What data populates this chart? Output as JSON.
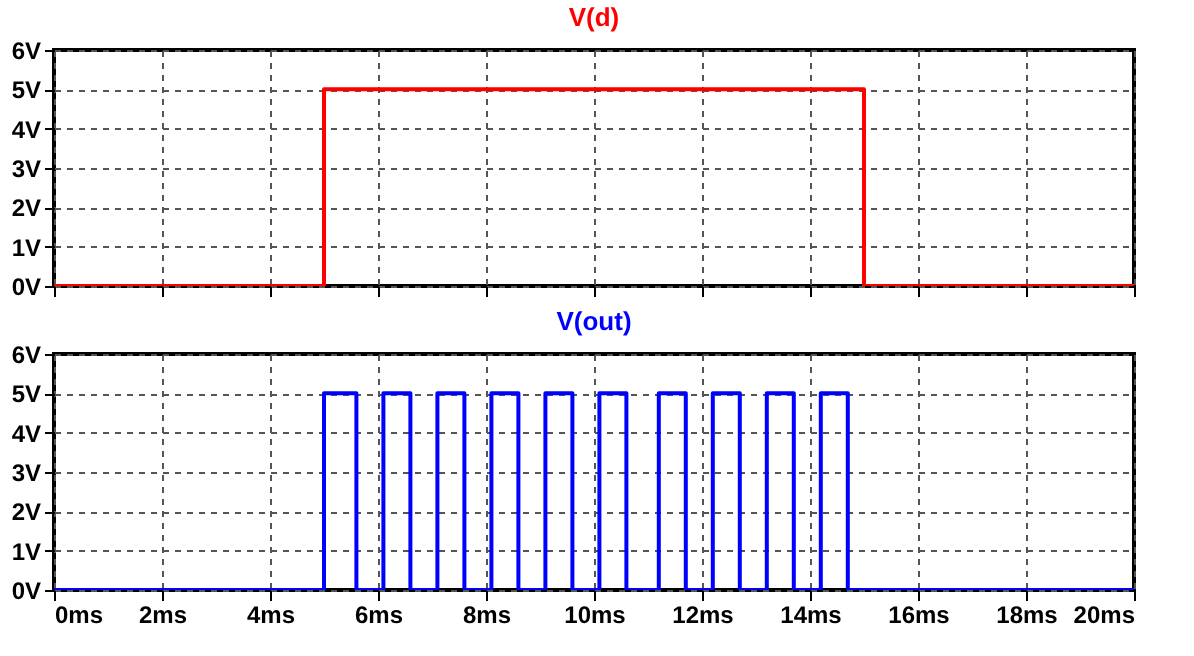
{
  "chart_data": [
    {
      "type": "line",
      "title": "V(d)",
      "series": [
        {
          "color": "#ff0000",
          "x": [
            0,
            5,
            5,
            15,
            15,
            20
          ],
          "values": [
            0,
            0,
            5,
            5,
            0,
            0
          ]
        }
      ],
      "xlim": [
        0,
        20
      ],
      "ylim": [
        0,
        6
      ],
      "xticks": [
        {
          "value": 0,
          "label": null
        },
        {
          "value": 2,
          "label": null
        },
        {
          "value": 4,
          "label": null
        },
        {
          "value": 6,
          "label": null
        },
        {
          "value": 8,
          "label": null
        },
        {
          "value": 10,
          "label": null
        },
        {
          "value": 12,
          "label": null
        },
        {
          "value": 14,
          "label": null
        },
        {
          "value": 16,
          "label": null
        },
        {
          "value": 18,
          "label": null
        },
        {
          "value": 20,
          "label": null
        }
      ],
      "yticks": [
        {
          "value": 0,
          "label": "0V"
        },
        {
          "value": 1,
          "label": "1V"
        },
        {
          "value": 2,
          "label": "2V"
        },
        {
          "value": 3,
          "label": "3V"
        },
        {
          "value": 4,
          "label": "4V"
        },
        {
          "value": 5,
          "label": "5V"
        },
        {
          "value": 6,
          "label": "6V"
        }
      ],
      "grid": true,
      "tick_labels": "y",
      "line_style": "solid"
    },
    {
      "type": "line",
      "title": "V(out)",
      "series": [
        {
          "color": "#0000ff",
          "x": [
            0,
            5.0,
            5.0,
            5.6,
            5.6,
            6.1,
            6.1,
            6.6,
            6.6,
            7.1,
            7.1,
            7.6,
            7.6,
            8.1,
            8.1,
            8.6,
            8.6,
            9.1,
            9.1,
            9.6,
            9.6,
            10.1,
            10.1,
            10.6,
            10.6,
            11.2,
            11.2,
            11.7,
            11.7,
            12.2,
            12.2,
            12.7,
            12.7,
            13.2,
            13.2,
            13.7,
            13.7,
            14.2,
            14.2,
            14.7,
            14.7,
            20
          ],
          "values": [
            0,
            0,
            5,
            5,
            0,
            0,
            5,
            5,
            0,
            0,
            5,
            5,
            0,
            0,
            5,
            5,
            0,
            0,
            5,
            5,
            0,
            0,
            5,
            5,
            0,
            0,
            5,
            5,
            0,
            0,
            5,
            5,
            0,
            0,
            5,
            5,
            0,
            0,
            5,
            5,
            0,
            0
          ]
        }
      ],
      "xlim": [
        0,
        20
      ],
      "ylim": [
        0,
        6
      ],
      "xticks": [
        {
          "value": 0,
          "label": "0ms"
        },
        {
          "value": 2,
          "label": "2ms"
        },
        {
          "value": 4,
          "label": "4ms"
        },
        {
          "value": 6,
          "label": "6ms"
        },
        {
          "value": 8,
          "label": "8ms"
        },
        {
          "value": 10,
          "label": "10ms"
        },
        {
          "value": 12,
          "label": "12ms"
        },
        {
          "value": 14,
          "label": "14ms"
        },
        {
          "value": 16,
          "label": "16ms"
        },
        {
          "value": 18,
          "label": "18ms"
        },
        {
          "value": 20,
          "label": "20ms"
        }
      ],
      "yticks": [
        {
          "value": 0,
          "label": "0V"
        },
        {
          "value": 1,
          "label": "1V"
        },
        {
          "value": 2,
          "label": "2V"
        },
        {
          "value": 3,
          "label": "3V"
        },
        {
          "value": 4,
          "label": "4V"
        },
        {
          "value": 5,
          "label": "5V"
        },
        {
          "value": 6,
          "label": "6V"
        }
      ],
      "grid": true,
      "line_style": "solid"
    }
  ]
}
